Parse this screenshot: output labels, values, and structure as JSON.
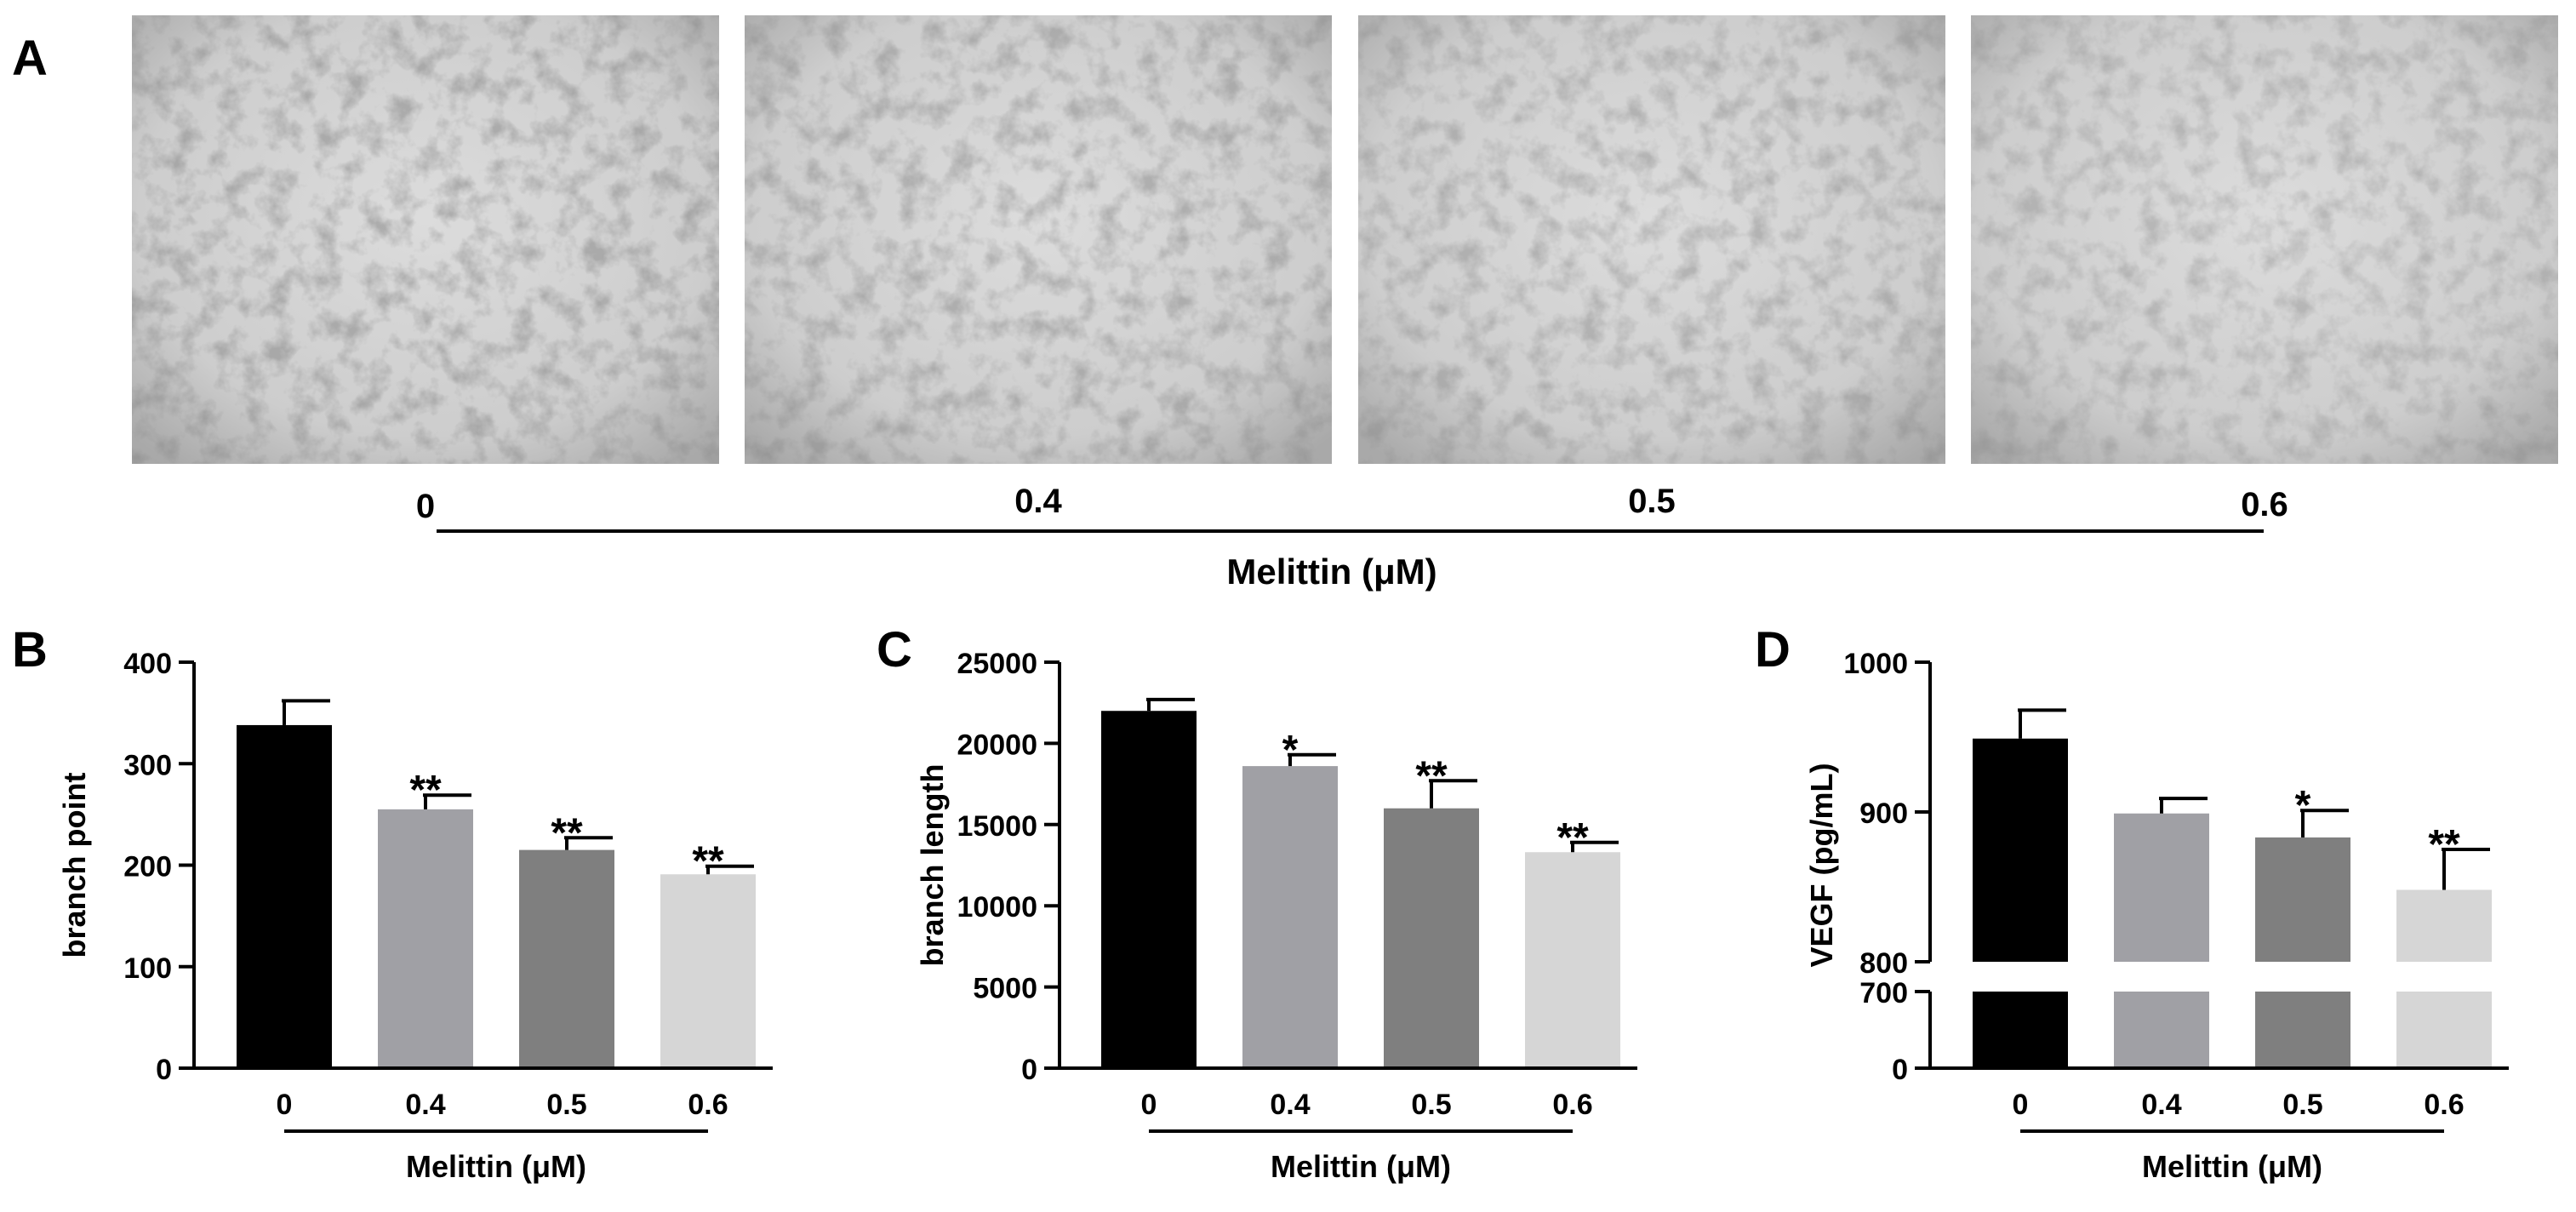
{
  "panel_a": {
    "letter": "A",
    "images": [
      {
        "label": "0"
      },
      {
        "label": "0.4"
      },
      {
        "label": "0.5"
      },
      {
        "label": "0.6"
      }
    ],
    "axis_title": "Melittin (μM)"
  },
  "chart_data": [
    {
      "panel": "B",
      "type": "bar",
      "categories": [
        "0",
        "0.4",
        "0.5",
        "0.6"
      ],
      "values": [
        338,
        255,
        215,
        191
      ],
      "errors": [
        24,
        14,
        12,
        8
      ],
      "significance": [
        "",
        "**",
        "**",
        "**"
      ],
      "colors": [
        "#000000",
        "#a0a0a5",
        "#7f7f7f",
        "#d6d6d6"
      ],
      "ylabel": "branch point",
      "xlabel": "Melittin (μM)",
      "ylim": [
        0,
        400
      ],
      "yticks": [
        0,
        100,
        200,
        300,
        400
      ]
    },
    {
      "panel": "C",
      "type": "bar",
      "categories": [
        "0",
        "0.4",
        "0.5",
        "0.6"
      ],
      "values": [
        22000,
        18600,
        16000,
        13300
      ],
      "errors": [
        700,
        700,
        1700,
        600
      ],
      "significance": [
        "",
        "*",
        "**",
        "**"
      ],
      "colors": [
        "#000000",
        "#a0a0a5",
        "#7f7f7f",
        "#d6d6d6"
      ],
      "ylabel": "branch length",
      "xlabel": "Melittin (μM)",
      "ylim": [
        0,
        25000
      ],
      "yticks": [
        0,
        5000,
        10000,
        15000,
        20000,
        25000
      ]
    },
    {
      "panel": "D",
      "type": "bar",
      "categories": [
        "0",
        "0.4",
        "0.5",
        "0.6"
      ],
      "values": [
        949,
        899,
        883,
        848
      ],
      "errors": [
        19,
        10,
        18,
        27
      ],
      "significance": [
        "",
        "",
        "*",
        "**"
      ],
      "colors": [
        "#000000",
        "#a0a0a5",
        "#7f7f7f",
        "#d6d6d6"
      ],
      "ylabel": "VEGF (pg/mL)",
      "xlabel": "Melittin (μM)",
      "broken_axis": {
        "lower": [
          0,
          700
        ],
        "upper": [
          800,
          1000
        ]
      },
      "yticks": [
        0,
        700,
        800,
        900,
        1000
      ]
    }
  ]
}
